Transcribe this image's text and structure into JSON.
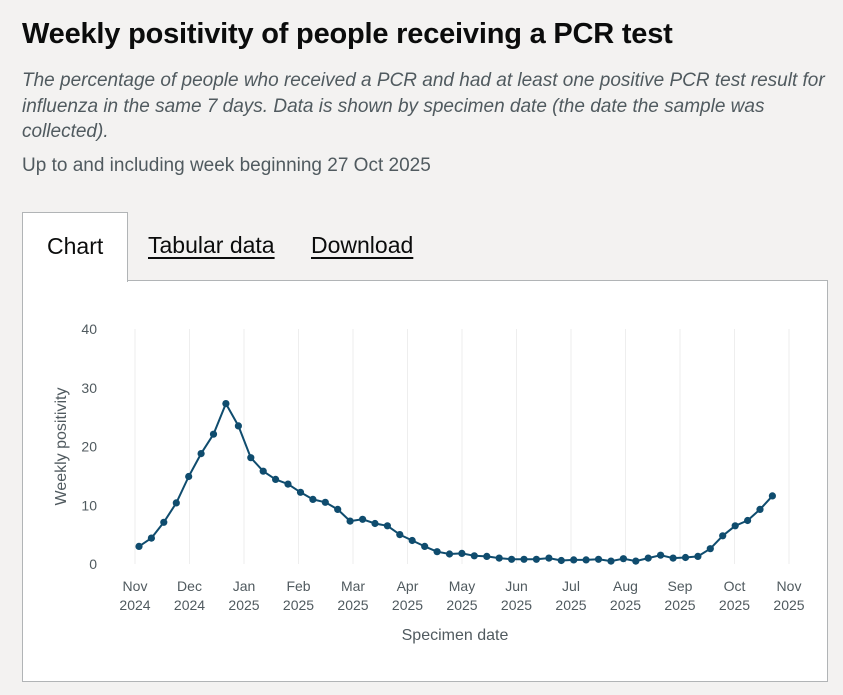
{
  "header": {
    "title": "Weekly positivity of people receiving a PCR test",
    "subtitle": "The percentage of people who received a PCR and had at least one positive PCR test result for influenza in the same 7 days. Data is shown by specimen date (the date the sample was collected).",
    "dateline": "Up to and including week beginning 27 Oct 2025"
  },
  "tabs": {
    "chart": "Chart",
    "tabular": "Tabular data",
    "download": "Download"
  },
  "colors": {
    "series": "#0f4c6e",
    "grid": "#eeeeee"
  },
  "chart_data": {
    "type": "line",
    "title": "Weekly positivity of people receiving a PCR test",
    "xlabel": "Specimen date",
    "ylabel": "Weekly positivity",
    "ylim": [
      0,
      40
    ],
    "yticks": [
      "0",
      "10",
      "20",
      "30",
      "40"
    ],
    "xticks": [
      {
        "month": "Nov",
        "year": "2024"
      },
      {
        "month": "Dec",
        "year": "2024"
      },
      {
        "month": "Jan",
        "year": "2025"
      },
      {
        "month": "Feb",
        "year": "2025"
      },
      {
        "month": "Mar",
        "year": "2025"
      },
      {
        "month": "Apr",
        "year": "2025"
      },
      {
        "month": "May",
        "year": "2025"
      },
      {
        "month": "Jun",
        "year": "2025"
      },
      {
        "month": "Jul",
        "year": "2025"
      },
      {
        "month": "Aug",
        "year": "2025"
      },
      {
        "month": "Sep",
        "year": "2025"
      },
      {
        "month": "Oct",
        "year": "2025"
      },
      {
        "month": "Nov",
        "year": "2025"
      }
    ],
    "grid": true,
    "series": [
      {
        "name": "Weekly positivity",
        "x_week_start": "2024-11-04",
        "values": [
          3.0,
          4.4,
          7.1,
          10.4,
          14.9,
          18.8,
          22.1,
          27.3,
          23.5,
          18.1,
          15.8,
          14.4,
          13.6,
          12.2,
          11.0,
          10.5,
          9.3,
          7.3,
          7.6,
          6.9,
          6.5,
          5.0,
          4.0,
          3.0,
          2.1,
          1.7,
          1.8,
          1.4,
          1.3,
          1.0,
          0.8,
          0.8,
          0.8,
          1.0,
          0.6,
          0.7,
          0.7,
          0.8,
          0.5,
          0.9,
          0.5,
          1.0,
          1.5,
          1.0,
          1.1,
          1.3,
          2.6,
          4.8,
          6.5,
          7.4,
          9.3,
          11.6
        ]
      }
    ]
  }
}
